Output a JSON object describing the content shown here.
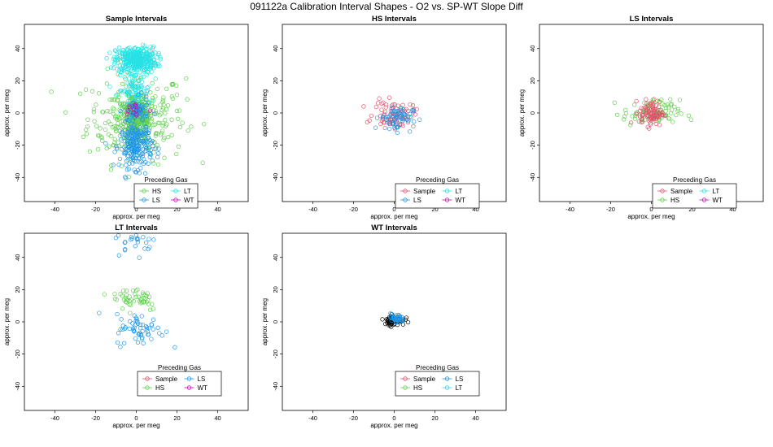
{
  "figure": {
    "title": "091122a   Calibration Interval Shapes - O2 vs. SP-WT Slope Diff"
  },
  "colors": {
    "Sample": "#df536b",
    "HS": "#61d04f",
    "LS": "#2297e6",
    "LT": "#28e2e5",
    "WT": "#cd0bbc",
    "black": "#000000"
  },
  "chart_data": [
    {
      "type": "scatter",
      "title": "Sample Intervals",
      "xlabel": "approx. per meg",
      "ylabel": "approx. per meg",
      "xlim": [
        -55,
        55
      ],
      "ylim": [
        -55,
        55
      ],
      "xticks": [
        "-40",
        "-20",
        "0",
        "20",
        "40"
      ],
      "yticks": [
        "-40",
        "-20",
        "0",
        "20",
        "40"
      ],
      "legend": {
        "title": "Preceding Gas",
        "entries": [
          "HS",
          "LT",
          "LS",
          "WT"
        ],
        "columns": 2
      },
      "series": [
        {
          "name": "HS",
          "clusters": [
            {
              "cx": 0,
              "cy": -3,
              "sx": 12,
              "sy": 14,
              "n": 260
            },
            {
              "cx": 0,
              "cy": -3,
              "sx": 4,
              "sy": 6,
              "n": 320
            }
          ]
        },
        {
          "name": "LT",
          "clusters": [
            {
              "cx": 0,
              "cy": 33,
              "sx": 5,
              "sy": 4,
              "n": 380
            },
            {
              "cx": -1,
              "cy": 14,
              "sx": 4,
              "sy": 6,
              "n": 90
            }
          ]
        },
        {
          "name": "LS",
          "clusters": [
            {
              "cx": 0,
              "cy": -20,
              "sx": 4,
              "sy": 7,
              "n": 230
            },
            {
              "cx": 0,
              "cy": 1,
              "sx": 3,
              "sy": 4,
              "n": 60
            }
          ]
        },
        {
          "name": "WT",
          "clusters": [
            {
              "cx": 0,
              "cy": 2,
              "sx": 3,
              "sy": 3,
              "n": 15
            }
          ]
        }
      ]
    },
    {
      "type": "scatter",
      "title": "HS Intervals",
      "xlabel": "approx. per meg",
      "ylabel": "approx. per meg",
      "xlim": [
        -55,
        55
      ],
      "ylim": [
        -55,
        55
      ],
      "xticks": [
        "-40",
        "-20",
        "0",
        "20",
        "40"
      ],
      "yticks": [
        "-40",
        "-20",
        "0",
        "20",
        "40"
      ],
      "legend": {
        "title": "Preceding Gas",
        "entries": [
          "Sample",
          "LT",
          "LS",
          "WT"
        ],
        "columns": 2
      },
      "series": [
        {
          "name": "Sample",
          "clusters": [
            {
              "cx": 0,
              "cy": -1,
              "sx": 5,
              "sy": 4,
              "n": 90
            }
          ]
        },
        {
          "name": "LS",
          "clusters": [
            {
              "cx": 1,
              "cy": -3,
              "sx": 4,
              "sy": 4,
              "n": 60
            }
          ]
        }
      ]
    },
    {
      "type": "scatter",
      "title": "LS Intervals",
      "xlabel": "approx. per meg",
      "ylabel": "approx. per meg",
      "xlim": [
        -55,
        55
      ],
      "ylim": [
        -55,
        55
      ],
      "xticks": [
        "-40",
        "-20",
        "0",
        "20",
        "40"
      ],
      "yticks": [
        "-40",
        "-20",
        "0",
        "20",
        "40"
      ],
      "legend": {
        "title": "Preceding Gas",
        "entries": [
          "Sample",
          "LT",
          "HS",
          "WT"
        ],
        "columns": 2
      },
      "series": [
        {
          "name": "HS",
          "clusters": [
            {
              "cx": 0,
              "cy": 0,
              "sx": 7,
              "sy": 4,
              "n": 90
            }
          ]
        },
        {
          "name": "Sample",
          "clusters": [
            {
              "cx": 0,
              "cy": 0,
              "sx": 3,
              "sy": 4,
              "n": 90
            }
          ]
        }
      ]
    },
    {
      "type": "scatter",
      "title": "LT Intervals",
      "xlabel": "approx. per meg",
      "ylabel": "approx. per meg",
      "xlim": [
        -55,
        55
      ],
      "ylim": [
        -55,
        55
      ],
      "xticks": [
        "-40",
        "-20",
        "0",
        "20",
        "40"
      ],
      "yticks": [
        "-40",
        "-20",
        "0",
        "20",
        "40"
      ],
      "legend": {
        "title": "Preceding Gas",
        "entries": [
          "Sample",
          "LS",
          "HS",
          "WT"
        ],
        "columns": 2
      },
      "series": [
        {
          "name": "HS",
          "clusters": [
            {
              "cx": 0,
              "cy": 15,
              "sx": 6,
              "sy": 4,
              "n": 50
            }
          ]
        },
        {
          "name": "LS",
          "clusters": [
            {
              "cx": 0,
              "cy": 50,
              "sx": 5,
              "sy": 4,
              "n": 25
            },
            {
              "cx": 2,
              "cy": -5,
              "sx": 6,
              "sy": 5,
              "n": 60
            }
          ]
        }
      ]
    },
    {
      "type": "scatter",
      "title": "WT Intervals",
      "xlabel": "approx. per meg",
      "ylabel": "approx. per meg",
      "xlim": [
        -55,
        55
      ],
      "ylim": [
        -55,
        55
      ],
      "xticks": [
        "-40",
        "-20",
        "0",
        "20",
        "40"
      ],
      "yticks": [
        "-40",
        "-20",
        "0",
        "20",
        "40"
      ],
      "legend": {
        "title": "Preceding Gas",
        "entries": [
          "Sample",
          "LS",
          "HS",
          "LT"
        ],
        "columns": 2
      },
      "series": [
        {
          "name": "black",
          "clusters": [
            {
              "cx": 0,
              "cy": 1,
              "sx": 2.5,
              "sy": 1.5,
              "n": 70
            }
          ]
        },
        {
          "name": "LS",
          "clusters": [
            {
              "cx": 1,
              "cy": 2,
              "sx": 2,
              "sy": 1.5,
              "n": 40
            }
          ]
        }
      ]
    }
  ]
}
